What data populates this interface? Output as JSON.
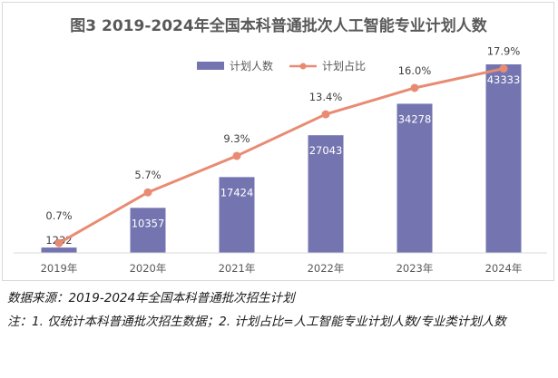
{
  "chart_data": {
    "type": "bar+line",
    "title": "图3  2019-2024年全国本科普通批次人工智能专业计划人数",
    "categories": [
      "2019年",
      "2020年",
      "2021年",
      "2022年",
      "2023年",
      "2024年"
    ],
    "series": [
      {
        "name": "计划人数",
        "type": "bar",
        "axis": "left",
        "color": "#7475b0",
        "values": [
          1232,
          10357,
          17424,
          27043,
          34278,
          43333
        ],
        "labels": [
          "1232",
          "10357",
          "17424",
          "27043",
          "34278",
          "43333"
        ]
      },
      {
        "name": "计划占比",
        "type": "line",
        "axis": "right",
        "color": "#e98b73",
        "values": [
          0.7,
          5.7,
          9.3,
          13.4,
          16.0,
          17.9
        ],
        "labels": [
          "0.7%",
          "5.7%",
          "9.3%",
          "13.4%",
          "16.0%",
          "17.9%"
        ]
      }
    ],
    "ylim_left": [
      0,
      45000
    ],
    "ylim_right": [
      0,
      18.5
    ],
    "grid": false,
    "legend_position": "top-center"
  },
  "footnotes": {
    "source": "数据来源：2019-2024年全国本科普通批次招生计划",
    "notes": "注：1. 仅统计本科普通批次招生数据；2. 计划占比=人工智能专业计划人数/专业类计划人数"
  }
}
